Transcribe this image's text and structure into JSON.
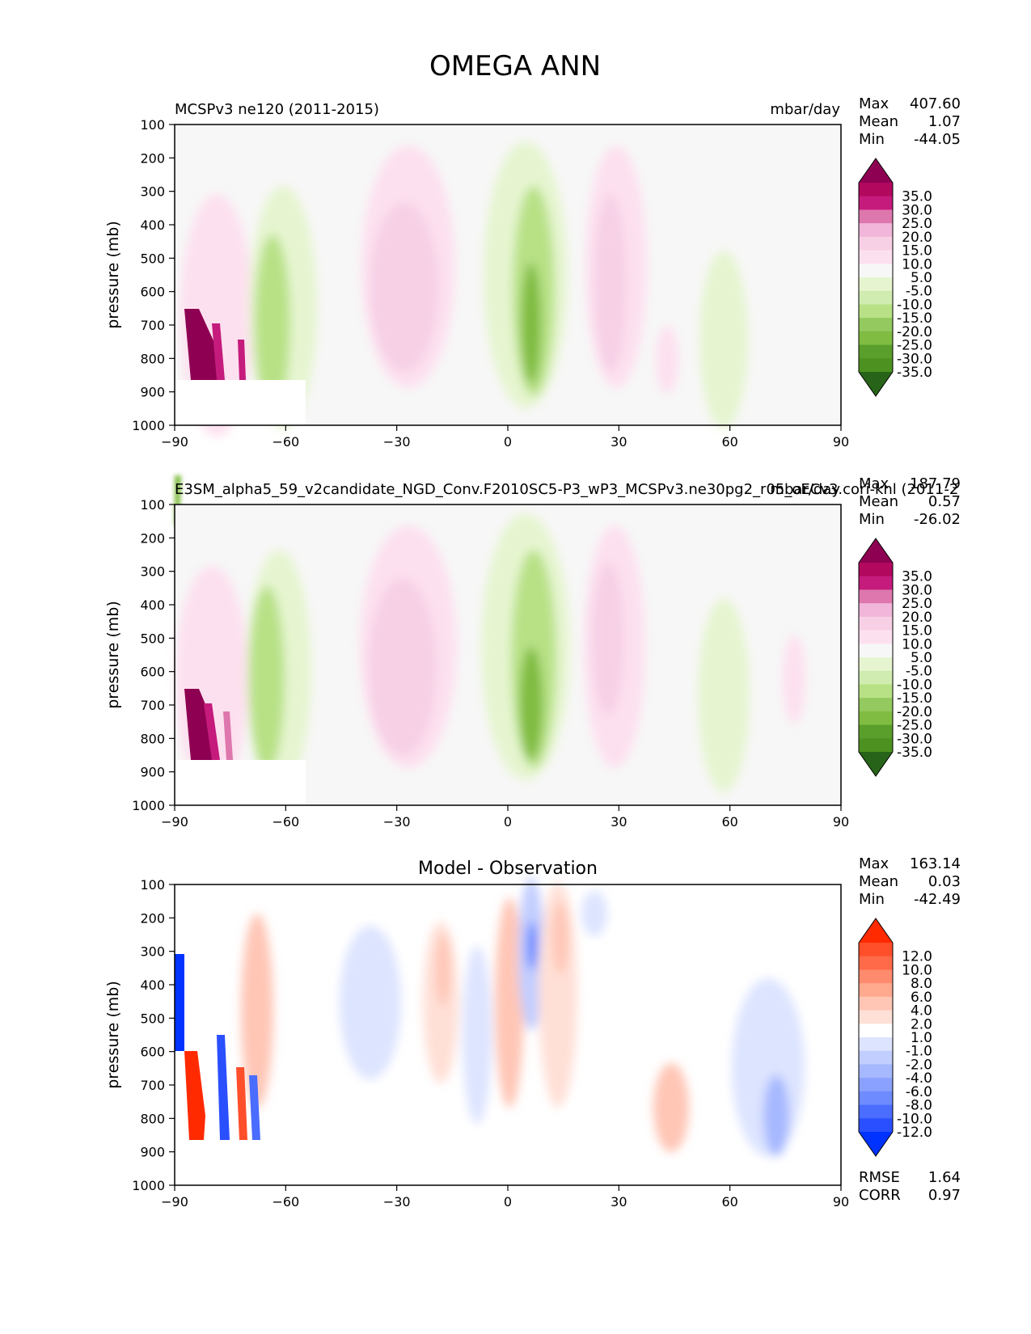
{
  "figure": {
    "title": "OMEGA ANN"
  },
  "chart_data": [
    {
      "type": "heatmap",
      "panel": "test",
      "title_left": "MCSPv3 ne120 (2011-2015)",
      "units": "mbar/day",
      "xlabel": "",
      "ylabel": "pressure (mb)",
      "xlim": [
        -90,
        90
      ],
      "ylim": [
        1000,
        100
      ],
      "xticks": [
        "−90",
        "−60",
        "−30",
        "0",
        "30",
        "60",
        "90"
      ],
      "yticks": [
        "100",
        "200",
        "300",
        "400",
        "500",
        "600",
        "700",
        "800",
        "900",
        "1000"
      ],
      "stats": [
        {
          "label": "Max",
          "value": "407.60"
        },
        {
          "label": "Mean",
          "value": "1.07"
        },
        {
          "label": "Min",
          "value": "-44.05"
        }
      ],
      "colorbar": {
        "labels": [
          "35.0",
          "30.0",
          "25.0",
          "20.0",
          "15.0",
          "10.0",
          "5.0",
          "-5.0",
          "-10.0",
          "-15.0",
          "-20.0",
          "-25.0",
          "-30.0",
          "-35.0"
        ],
        "colors": [
          "#8e0152",
          "#b2095f",
          "#c51b7d",
          "#de77ae",
          "#f1b6da",
          "#f7d0e6",
          "#fde0ef",
          "#f7f7f7",
          "#e6f5d0",
          "#d0ecb0",
          "#b8e186",
          "#93c95e",
          "#7fbc41",
          "#5a9e2c",
          "#4d9221",
          "#276419"
        ]
      },
      "features": [
        {
          "lat": -80,
          "p": 780,
          "value": 35
        },
        {
          "lat": -64,
          "p": 650,
          "value": -12
        },
        {
          "lat": -30,
          "p": 550,
          "value": 12
        },
        {
          "lat": 6,
          "p": 650,
          "value": -25
        },
        {
          "lat": 28,
          "p": 550,
          "value": 10
        },
        {
          "lat": 60,
          "p": 700,
          "value": -6
        }
      ]
    },
    {
      "type": "heatmap",
      "panel": "reference",
      "title_left": "E3SM_alpha5_59_v2candidate_NGD_Conv.F2010SC5-P3_wP3_MCSPv3.ne30pg2_r05_oECv3.cori-knl (2011-2",
      "units": "mbar/day",
      "xlabel": "",
      "ylabel": "pressure (mb)",
      "xlim": [
        -90,
        90
      ],
      "ylim": [
        1000,
        100
      ],
      "xticks": [
        "−90",
        "−60",
        "−30",
        "0",
        "30",
        "60",
        "90"
      ],
      "yticks": [
        "100",
        "200",
        "300",
        "400",
        "500",
        "600",
        "700",
        "800",
        "900",
        "1000"
      ],
      "stats": [
        {
          "label": "Max",
          "value": "187.79"
        },
        {
          "label": "Mean",
          "value": "0.57"
        },
        {
          "label": "Min",
          "value": "-26.02"
        }
      ],
      "colorbar": {
        "labels": [
          "35.0",
          "30.0",
          "25.0",
          "20.0",
          "15.0",
          "10.0",
          "5.0",
          "-5.0",
          "-10.0",
          "-15.0",
          "-20.0",
          "-25.0",
          "-30.0",
          "-35.0"
        ],
        "colors": [
          "#8e0152",
          "#b2095f",
          "#c51b7d",
          "#de77ae",
          "#f1b6da",
          "#f7d0e6",
          "#fde0ef",
          "#f7f7f7",
          "#e6f5d0",
          "#d0ecb0",
          "#b8e186",
          "#93c95e",
          "#7fbc41",
          "#5a9e2c",
          "#4d9221",
          "#276419"
        ]
      },
      "features": [
        {
          "lat": -80,
          "p": 790,
          "value": 30
        },
        {
          "lat": -64,
          "p": 650,
          "value": -12
        },
        {
          "lat": -31,
          "p": 550,
          "value": 12
        },
        {
          "lat": 6,
          "p": 650,
          "value": -22
        },
        {
          "lat": 27,
          "p": 550,
          "value": 10
        },
        {
          "lat": 60,
          "p": 700,
          "value": -5
        }
      ]
    },
    {
      "type": "heatmap",
      "panel": "difference",
      "title_center": "Model - Observation",
      "units": "",
      "xlabel": "",
      "ylabel": "pressure (mb)",
      "xlim": [
        -90,
        90
      ],
      "ylim": [
        1000,
        100
      ],
      "xticks": [
        "−90",
        "−60",
        "−30",
        "0",
        "30",
        "60",
        "90"
      ],
      "yticks": [
        "100",
        "200",
        "300",
        "400",
        "500",
        "600",
        "700",
        "800",
        "900",
        "1000"
      ],
      "stats": [
        {
          "label": "Max",
          "value": "163.14"
        },
        {
          "label": "Mean",
          "value": "0.03"
        },
        {
          "label": "Min",
          "value": "-42.49"
        }
      ],
      "extra_stats": [
        {
          "label": "RMSE",
          "value": "1.64"
        },
        {
          "label": "CORR",
          "value": "0.97"
        }
      ],
      "colorbar": {
        "labels": [
          "12.0",
          "10.0",
          "8.0",
          "6.0",
          "4.0",
          "2.0",
          "1.0",
          "-1.0",
          "-2.0",
          "-4.0",
          "-6.0",
          "-8.0",
          "-10.0",
          "-12.0"
        ],
        "colors": [
          "#ff2a00",
          "#ff4e2a",
          "#ff6a48",
          "#ff8b6e",
          "#ffa98f",
          "#ffc6b6",
          "#ffe0d7",
          "#ffffff",
          "#dde4ff",
          "#c2ceff",
          "#a6b8ff",
          "#8aa1ff",
          "#6e8bff",
          "#4a6cff",
          "#2a4fff",
          "#0033ff"
        ]
      },
      "features": [
        {
          "lat": -85,
          "p": 550,
          "value": -12
        },
        {
          "lat": -80,
          "p": 780,
          "value": 12
        },
        {
          "lat": -40,
          "p": 400,
          "value": -2
        },
        {
          "lat": -20,
          "p": 500,
          "value": 2
        },
        {
          "lat": 6,
          "p": 350,
          "value": -6
        },
        {
          "lat": 15,
          "p": 500,
          "value": 2
        },
        {
          "lat": 70,
          "p": 600,
          "value": -2
        }
      ]
    }
  ]
}
